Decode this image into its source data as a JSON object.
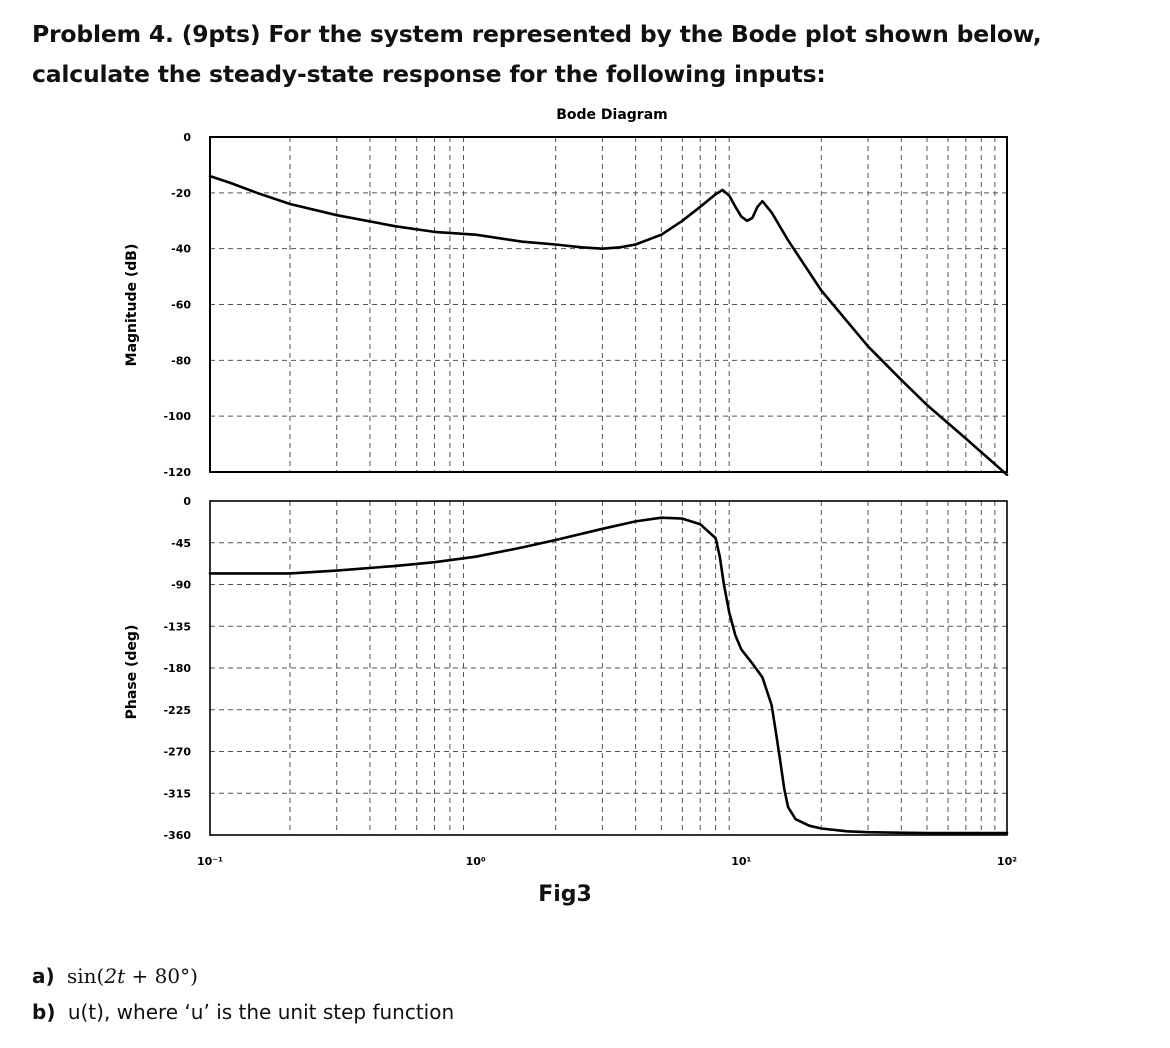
{
  "problem": {
    "text": "Problem 4. (9pts) For the system represented by the Bode plot shown below, calculate the steady-state response for the following inputs:"
  },
  "figure_label": "Fig3",
  "inputs": {
    "a_label": "a)",
    "a_func": "sin",
    "a_open": "(",
    "a_t": "2t",
    "a_plus": "+",
    "a_num": "80",
    "a_deg": "°",
    "a_close": ")",
    "b_label": "b)",
    "b_text": "u(t), where ‘u’ is the unit step function"
  },
  "chart_data": [
    {
      "type": "line",
      "title": "Bode Diagram",
      "ylabel": "Magnitude (dB)",
      "xscale": "log",
      "xlim": [
        0.1,
        100
      ],
      "ylim": [
        -120,
        0
      ],
      "yticks": [
        0,
        -20,
        -40,
        -60,
        -80,
        -100,
        -120
      ],
      "grid": true,
      "series": [
        {
          "x": [
            0.1,
            0.12,
            0.15,
            0.2,
            0.3,
            0.5,
            0.7,
            1.0,
            1.5,
            2.0,
            2.5,
            3.0,
            3.5,
            4.0,
            5.0,
            6.0,
            7.0,
            8.0,
            8.5,
            9.0,
            9.5,
            10.0,
            10.5,
            11.0,
            11.5,
            12.0,
            13.0,
            15.0,
            20.0,
            30.0,
            40.0,
            50.0,
            70.0,
            100.0
          ],
          "y": [
            -14,
            -16.5,
            -20,
            -24,
            -28,
            -32,
            -34,
            -35,
            -37.5,
            -38.5,
            -39.5,
            -40,
            -39.5,
            -38.5,
            -35,
            -30,
            -25,
            -20.5,
            -19,
            -21,
            -25,
            -28.5,
            -30,
            -29,
            -25,
            -23,
            -27,
            -37,
            -55,
            -75,
            -87,
            -96,
            -108,
            -121
          ]
        }
      ]
    },
    {
      "type": "line",
      "ylabel": "Phase (deg)",
      "xscale": "log",
      "xlim": [
        0.1,
        100
      ],
      "ylim": [
        -360,
        0
      ],
      "yticks": [
        0,
        -45,
        -90,
        -135,
        -180,
        -225,
        -270,
        -315,
        -360
      ],
      "xticks": [
        "10⁻¹",
        "10⁰",
        "10¹",
        "10²"
      ],
      "grid": true,
      "series": [
        {
          "x": [
            0.1,
            0.15,
            0.2,
            0.3,
            0.5,
            0.7,
            1.0,
            1.5,
            2.0,
            3.0,
            4.0,
            5.0,
            6.0,
            7.0,
            8.0,
            8.3,
            8.6,
            9.0,
            9.5,
            10.0,
            11.0,
            12.0,
            13.0,
            13.5,
            14.0,
            14.5,
            15.0,
            16.0,
            18.0,
            20.0,
            25.0,
            30.0,
            50.0,
            100.0
          ],
          "y": [
            -78,
            -78,
            -78,
            -75,
            -70,
            -66,
            -60,
            -50,
            -42,
            -30,
            -22,
            -18,
            -19,
            -25,
            -40,
            -60,
            -90,
            -120,
            -145,
            -160,
            -175,
            -190,
            -220,
            -250,
            -280,
            -310,
            -330,
            -343,
            -350,
            -353,
            -356,
            -357,
            -358,
            -358
          ]
        }
      ]
    }
  ]
}
